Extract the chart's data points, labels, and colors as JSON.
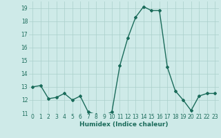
{
  "x": [
    0,
    1,
    2,
    3,
    4,
    5,
    6,
    7,
    8,
    9,
    10,
    11,
    12,
    13,
    14,
    15,
    16,
    17,
    18,
    19,
    20,
    21,
    22,
    23
  ],
  "y": [
    13,
    13.1,
    12.1,
    12.2,
    12.5,
    12.0,
    12.3,
    11.1,
    10.9,
    10.8,
    11.1,
    14.6,
    16.7,
    18.3,
    19.1,
    18.8,
    18.8,
    14.5,
    12.7,
    12.0,
    11.2,
    12.3,
    12.5,
    12.5
  ],
  "xlabel": "Humidex (Indice chaleur)",
  "ylim": [
    11,
    19.5
  ],
  "xlim": [
    -0.5,
    23.5
  ],
  "yticks": [
    11,
    12,
    13,
    14,
    15,
    16,
    17,
    18,
    19
  ],
  "xticks": [
    0,
    1,
    2,
    3,
    4,
    5,
    6,
    7,
    8,
    9,
    10,
    11,
    12,
    13,
    14,
    15,
    16,
    17,
    18,
    19,
    20,
    21,
    22,
    23
  ],
  "line_color": "#1a6b5a",
  "marker": "D",
  "marker_size": 2,
  "bg_color": "#ceeae8",
  "grid_color": "#aacfca",
  "xlabel_color": "#1a6b5a",
  "tick_color": "#1a6b5a",
  "line_width": 1.0,
  "tick_fontsize": 5.5,
  "xlabel_fontsize": 6.5
}
